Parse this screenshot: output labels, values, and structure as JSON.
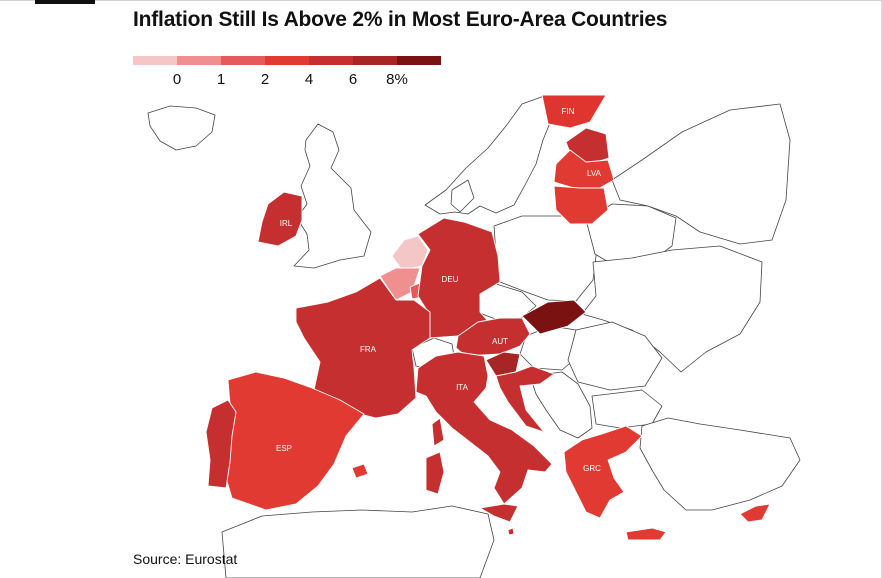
{
  "title": "Inflation Still Is Above 2% in Most Euro-Area Countries",
  "legend": {
    "colors": [
      "#f4c6c6",
      "#ef8f8f",
      "#e55b5b",
      "#e03a32",
      "#c62f2f",
      "#a82525",
      "#7a1212"
    ],
    "labels": [
      "0",
      "1",
      "2",
      "4",
      "6",
      "8%"
    ]
  },
  "countries": {
    "FIN": {
      "label": "FIN",
      "color": "#e0352f"
    },
    "LVA": {
      "label": "LVA",
      "color": "#e03a32"
    },
    "EST": {
      "label": "",
      "color": "#c62f2f"
    },
    "LTU": {
      "label": "",
      "color": "#e03a32"
    },
    "IRL": {
      "label": "IRL",
      "color": "#c62f2f"
    },
    "NLD": {
      "label": "",
      "color": "#f4c6c6"
    },
    "BEL": {
      "label": "",
      "color": "#ef8f8f"
    },
    "LUX": {
      "label": "",
      "color": "#e55b5b"
    },
    "DEU": {
      "label": "DEU",
      "color": "#c62f2f"
    },
    "FRA": {
      "label": "FRA",
      "color": "#c62f2f"
    },
    "AUT": {
      "label": "AUT",
      "color": "#c62f2f"
    },
    "SVK": {
      "label": "",
      "color": "#7a1212"
    },
    "SVN": {
      "label": "",
      "color": "#a82525"
    },
    "HRV": {
      "label": "",
      "color": "#c62f2f"
    },
    "ITA": {
      "label": "ITA",
      "color": "#c62f2f"
    },
    "ESP": {
      "label": "ESP",
      "color": "#e03a32"
    },
    "PRT": {
      "label": "",
      "color": "#c62f2f"
    },
    "GRC": {
      "label": "GRC",
      "color": "#e03a32"
    },
    "CYP": {
      "label": "",
      "color": "#e03a32"
    },
    "MLT": {
      "label": "",
      "color": "#c62f2f"
    }
  },
  "source": "Source: Eurostat"
}
